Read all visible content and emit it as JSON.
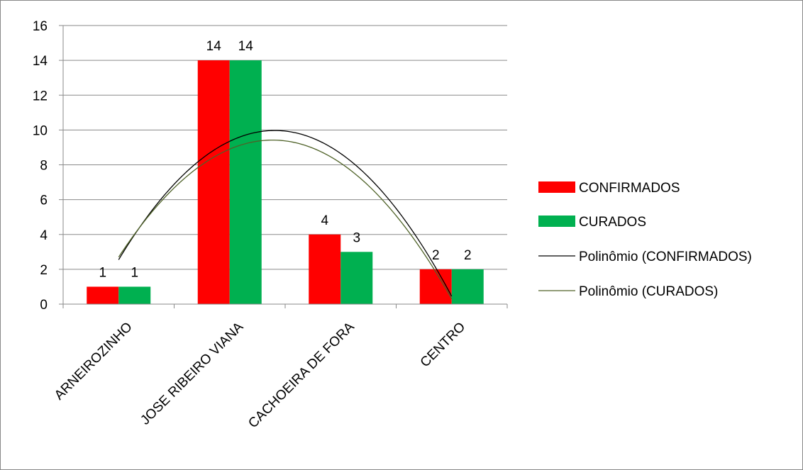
{
  "chart_data": {
    "type": "bar",
    "categories": [
      "ARNEIROZINHO",
      "JOSE RIBEIRO VIANA",
      "CACHOEIRA DE FORA",
      "CENTRO"
    ],
    "series": [
      {
        "name": "CONFIRMADOS",
        "values": [
          1,
          14,
          4,
          2
        ],
        "color": "#ff0000"
      },
      {
        "name": "CURADOS",
        "values": [
          1,
          14,
          3,
          2
        ],
        "color": "#00b050"
      }
    ],
    "trendlines": [
      {
        "name": "Polinômio (CONFIRMADOS)",
        "type": "polynomial",
        "order": 2,
        "color": "#000000"
      },
      {
        "name": "Polinômio (CURADOS)",
        "type": "polynomial",
        "order": 2,
        "color": "#4f6228"
      }
    ],
    "ylim": [
      0,
      16
    ],
    "yticks": [
      0,
      2,
      4,
      6,
      8,
      10,
      12,
      14,
      16
    ],
    "grid": true,
    "legend": "right"
  }
}
